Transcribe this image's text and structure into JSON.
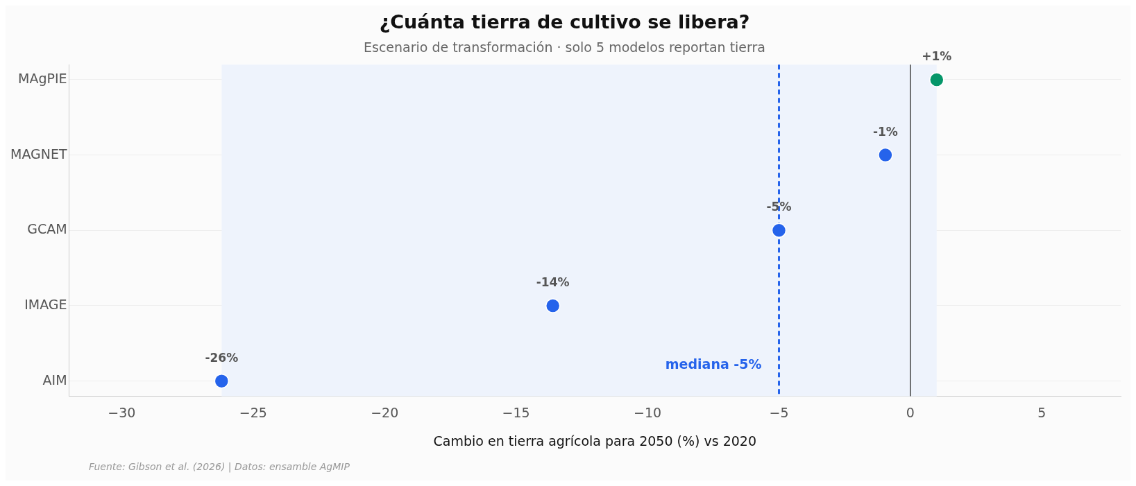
{
  "chart_data": {
    "type": "scatter",
    "orientation": "horizontal",
    "title": "¿Cuánta tierra de cultivo se libera?",
    "subtitle": "Escenario de transformación · solo 5 modelos reportan tierra",
    "xlabel": "Cambio en tierra agrícola para 2050 (%) vs 2020",
    "categories": [
      "MAgPIE",
      "MAGNET",
      "GCAM",
      "IMAGE",
      "AIM"
    ],
    "values": [
      1.0,
      -0.95,
      -5.0,
      -13.6,
      -26.2
    ],
    "colors": [
      "#059669",
      "#2563eb",
      "#2563eb",
      "#2563eb",
      "#2563eb"
    ],
    "value_labels": [
      "+1%",
      "-1%",
      "-5%",
      "-14%",
      "-26%"
    ],
    "xlim": [
      -32,
      8
    ],
    "xticks": [
      {
        "value": -30,
        "label": "−30"
      },
      {
        "value": -25,
        "label": "−25"
      },
      {
        "value": -20,
        "label": "−20"
      },
      {
        "value": -15,
        "label": "−15"
      },
      {
        "value": -10,
        "label": "−10"
      },
      {
        "value": -5,
        "label": "−5"
      },
      0,
      5
    ],
    "ref_lines": [
      {
        "axis": "x",
        "value": -5,
        "label": "mediana -5%",
        "color": "#2563eb",
        "line_style": "dashed"
      },
      {
        "axis": "x",
        "value": 0,
        "label": null,
        "color": "#444444",
        "line_style": "solid"
      }
    ],
    "bands": [
      {
        "axis": "x",
        "from": -26.2,
        "to": 1.0,
        "label": null,
        "color": "#eef3fc"
      }
    ],
    "grid": "y",
    "legend": false,
    "marker": "circle",
    "annotations": [
      "Fuente: Gibson et al. (2026) | Datos: ensamble AgMIP"
    ]
  }
}
